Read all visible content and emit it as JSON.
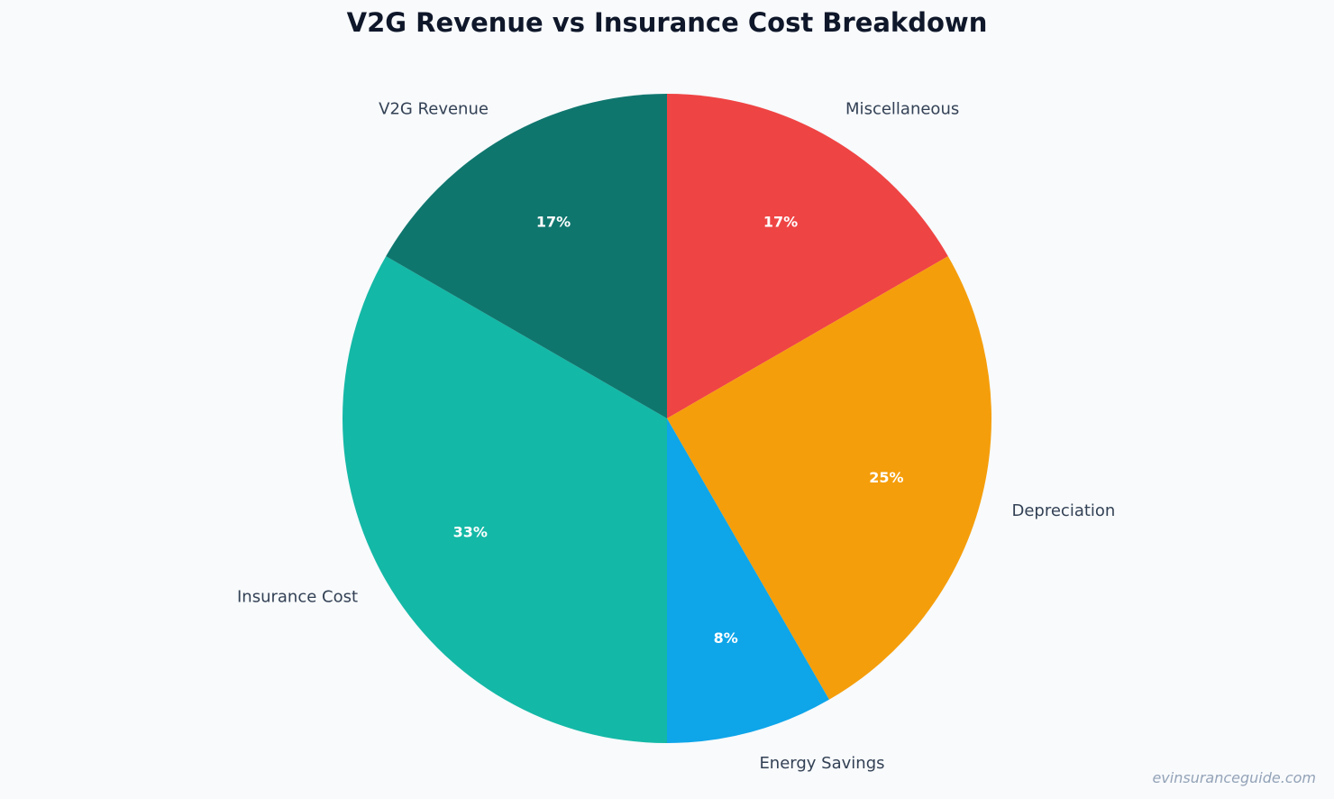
{
  "chart_data": {
    "type": "pie",
    "title": "V2G Revenue vs Insurance Cost Breakdown",
    "slices": [
      {
        "label": "Miscellaneous",
        "value": 16.67,
        "percent_label": "17%",
        "color": "#ef4444"
      },
      {
        "label": "Depreciation",
        "value": 25,
        "percent_label": "25%",
        "color": "#f59e0b"
      },
      {
        "label": "Energy Savings",
        "value": 8.33,
        "percent_label": "8%",
        "color": "#0ea5e9"
      },
      {
        "label": "Insurance Cost",
        "value": 33.33,
        "percent_label": "33%",
        "color": "#14b8a6"
      },
      {
        "label": "V2G Revenue",
        "value": 16.67,
        "percent_label": "17%",
        "color": "#0f766e"
      }
    ],
    "start_angle": "12 o'clock",
    "direction": "clockwise",
    "legend": "none"
  },
  "watermark": "evinsuranceguide.com"
}
